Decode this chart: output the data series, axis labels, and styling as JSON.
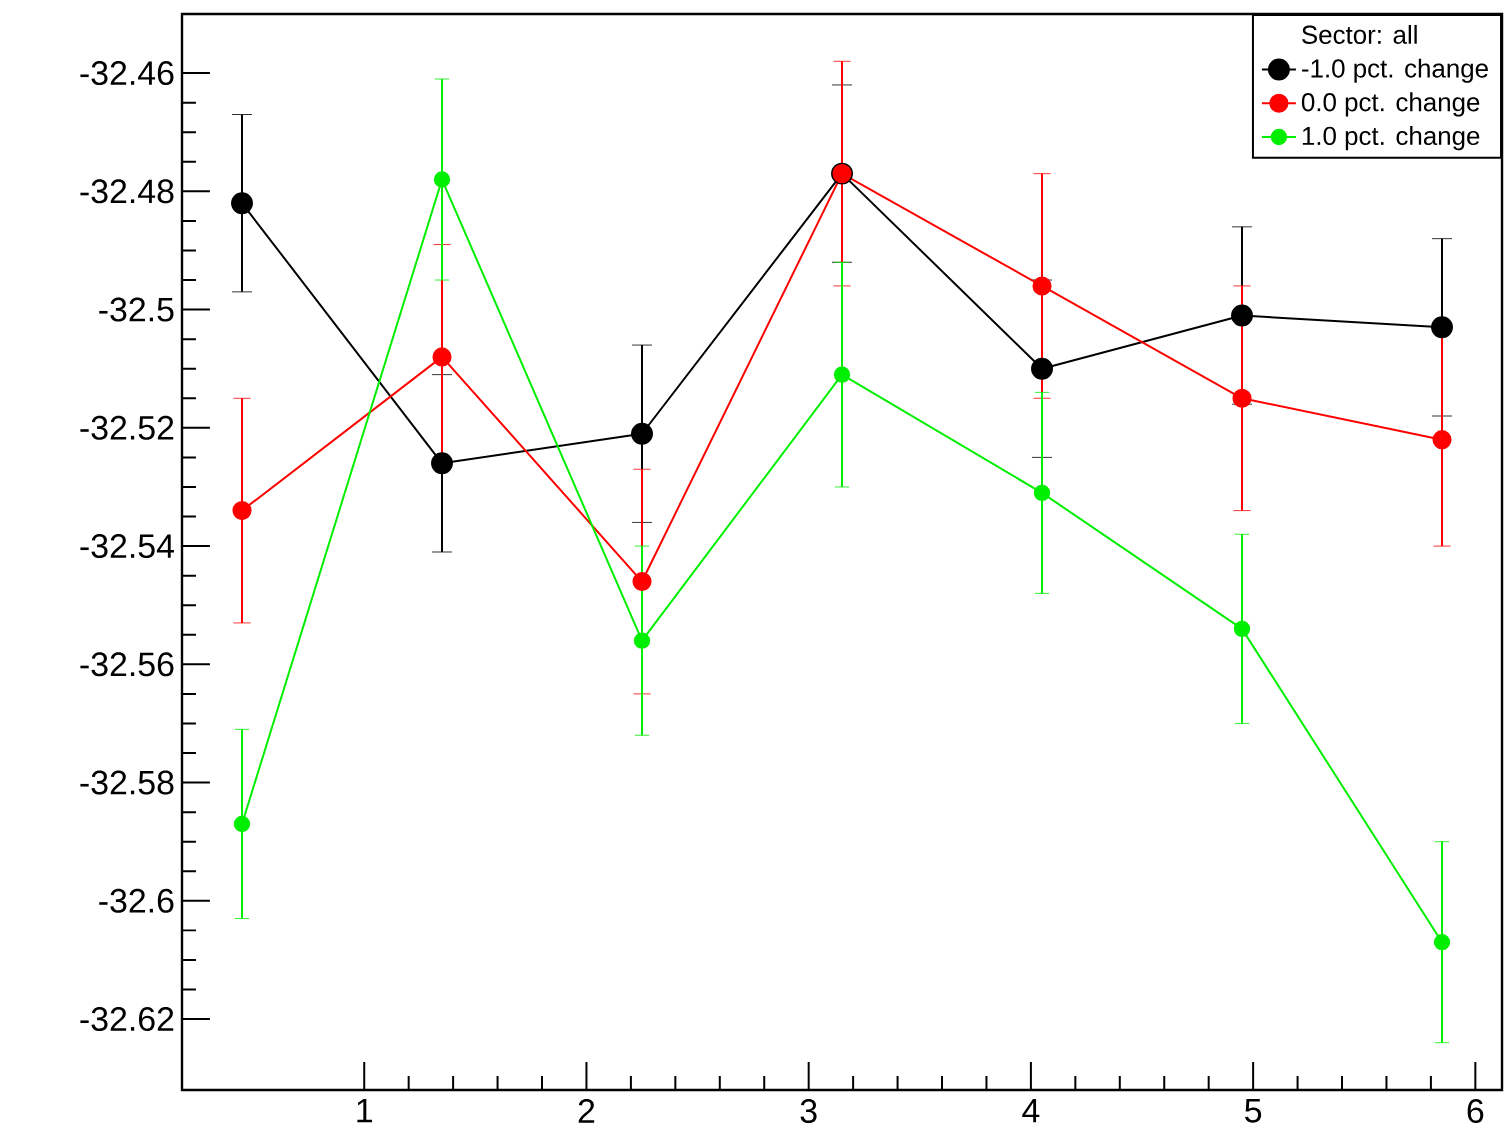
{
  "chart_data": {
    "type": "line",
    "legend_title": "Sector: all",
    "x": [
      0.45,
      1.35,
      2.25,
      3.15,
      4.05,
      4.95,
      5.85
    ],
    "series": [
      {
        "name": "-1.0 pct. change",
        "color": "#000000",
        "values": [
          -32.482,
          -32.526,
          -32.521,
          -32.477,
          -32.51,
          -32.501,
          -32.503
        ],
        "errors": [
          0.015,
          0.015,
          0.015,
          0.015,
          0.015,
          0.015,
          0.015
        ]
      },
      {
        "name": "0.0 pct. change",
        "color": "#ff0000",
        "values": [
          -32.534,
          -32.508,
          -32.546,
          -32.477,
          -32.496,
          -32.515,
          -32.522
        ],
        "errors": [
          0.019,
          0.019,
          0.019,
          0.019,
          0.019,
          0.019,
          0.018
        ]
      },
      {
        "name": "1.0 pct. change",
        "color": "#00ee00",
        "values": [
          -32.587,
          -32.478,
          -32.556,
          -32.511,
          -32.531,
          -32.554,
          -32.607
        ],
        "errors": [
          0.016,
          0.017,
          0.016,
          0.019,
          0.017,
          0.016,
          0.017
        ]
      }
    ],
    "xlim": [
      0.18,
      6.12
    ],
    "ylim": [
      -32.632,
      -32.45
    ],
    "xticks": [
      1,
      2,
      3,
      4,
      5,
      6
    ],
    "yticks": [
      -32.62,
      -32.6,
      -32.58,
      -32.56,
      -32.54,
      -32.52,
      -32.5,
      -32.48,
      -32.46
    ],
    "grid": false,
    "legend": "top right",
    "marker": "circle",
    "line_style": "solid"
  }
}
